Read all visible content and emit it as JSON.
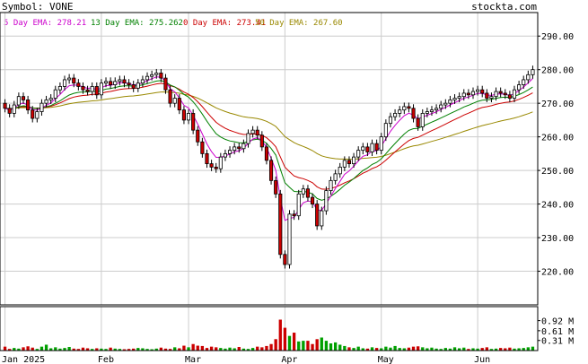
{
  "header": {
    "symbol_text": "Symbol: VONE",
    "site": "stockta.com"
  },
  "legend": [
    {
      "label": "5 Day EMA: 278.21",
      "color": "#cc00cc"
    },
    {
      "label": "13 Day EMA: 275.262",
      "color": "#008000"
    },
    {
      "label": "0 Day EMA: 273.41",
      "color": "#cc0000"
    },
    {
      "label": "50 Day EMA: 267.60",
      "color": "#998800"
    }
  ],
  "colors": {
    "up": "#ffffff",
    "down": "#cc0000",
    "vol_up": "#00a000",
    "vol_down": "#cc0000",
    "grid": "#cccccc",
    "panel_border": "#000000"
  },
  "chart_data": {
    "type": "candlestick",
    "price_axis": {
      "ticks": [
        220,
        230,
        240,
        250,
        260,
        270,
        280,
        290
      ],
      "tick_labels": [
        "220.00",
        "230.00",
        "240.00",
        "250.00",
        "260.00",
        "270.00",
        "280.00",
        "290.00"
      ],
      "range": [
        210,
        297
      ]
    },
    "volume_axis": {
      "ticks": [
        0.31,
        0.61,
        0.92
      ],
      "tick_labels": [
        "0.31 M",
        "0.61 M",
        "0.92 M"
      ],
      "range": [
        0,
        1.35
      ]
    },
    "x_axis": {
      "labels": [
        "Jan 2025",
        "Feb",
        "Mar",
        "Apr",
        "May",
        "Jun"
      ],
      "label_index": [
        0,
        21,
        40,
        61,
        82,
        103
      ]
    },
    "close": [
      268.5,
      267.0,
      269.5,
      272.0,
      271.0,
      268.0,
      265.5,
      267.5,
      270.0,
      271.0,
      271.5,
      274.0,
      275.0,
      277.0,
      277.5,
      276.0,
      275.0,
      274.0,
      273.5,
      275.0,
      272.5,
      276.0,
      276.5,
      275.5,
      276.5,
      277.0,
      276.0,
      275.5,
      274.5,
      276.0,
      277.0,
      278.0,
      278.5,
      279.0,
      277.5,
      274.0,
      270.0,
      271.5,
      268.0,
      265.0,
      267.0,
      262.0,
      258.5,
      255.0,
      252.0,
      251.0,
      250.5,
      254.0,
      255.0,
      256.0,
      257.0,
      256.5,
      258.0,
      261.0,
      262.0,
      260.5,
      257.0,
      253.0,
      247.0,
      243.0,
      225.0,
      222.0,
      237.0,
      236.5,
      243.0,
      244.5,
      242.0,
      240.0,
      233.5,
      238.0,
      244.0,
      247.0,
      249.0,
      251.0,
      253.0,
      252.0,
      254.0,
      256.0,
      257.0,
      255.5,
      258.0,
      256.0,
      260.0,
      264.0,
      266.0,
      267.0,
      268.0,
      269.0,
      268.5,
      265.5,
      263.0,
      267.0,
      267.5,
      268.0,
      268.5,
      269.5,
      270.0,
      271.0,
      271.5,
      272.0,
      273.0,
      272.5,
      273.5,
      274.0,
      273.0,
      271.5,
      272.0,
      273.5,
      273.0,
      272.5,
      271.5,
      274.0,
      275.5,
      277.0,
      278.5,
      280.0
    ],
    "open": [
      270.0,
      268.5,
      267.0,
      269.5,
      272.0,
      271.0,
      268.0,
      265.5,
      267.5,
      270.0,
      271.0,
      271.5,
      274.0,
      275.0,
      277.0,
      277.5,
      276.0,
      275.0,
      274.0,
      273.5,
      275.0,
      272.5,
      276.0,
      276.5,
      275.5,
      276.5,
      277.0,
      276.0,
      275.5,
      274.5,
      276.0,
      277.0,
      278.0,
      278.5,
      279.0,
      277.5,
      274.0,
      270.0,
      271.5,
      268.0,
      265.0,
      267.0,
      262.0,
      258.5,
      255.0,
      252.0,
      251.0,
      250.5,
      254.0,
      255.0,
      256.0,
      257.0,
      256.5,
      258.0,
      261.0,
      262.0,
      260.5,
      257.0,
      253.0,
      247.0,
      243.0,
      225.0,
      222.0,
      237.0,
      236.5,
      243.0,
      244.5,
      242.0,
      240.0,
      233.5,
      238.0,
      244.0,
      247.0,
      249.0,
      251.0,
      253.0,
      252.0,
      254.0,
      256.0,
      257.0,
      255.5,
      258.0,
      256.0,
      260.0,
      264.0,
      266.0,
      267.0,
      268.0,
      269.0,
      268.5,
      265.5,
      263.0,
      267.0,
      267.5,
      268.0,
      268.5,
      269.5,
      270.0,
      271.0,
      271.5,
      272.0,
      273.0,
      272.5,
      273.5,
      274.0,
      273.0,
      271.5,
      272.0,
      273.5,
      273.0,
      272.5,
      271.5,
      274.0,
      275.5,
      277.0,
      278.5
    ],
    "volume": [
      0.12,
      0.05,
      0.08,
      0.06,
      0.1,
      0.13,
      0.09,
      0.05,
      0.12,
      0.18,
      0.07,
      0.1,
      0.06,
      0.08,
      0.11,
      0.06,
      0.05,
      0.09,
      0.07,
      0.05,
      0.07,
      0.06,
      0.05,
      0.09,
      0.06,
      0.05,
      0.04,
      0.05,
      0.06,
      0.08,
      0.07,
      0.05,
      0.04,
      0.06,
      0.09,
      0.06,
      0.05,
      0.1,
      0.07,
      0.15,
      0.1,
      0.2,
      0.15,
      0.14,
      0.08,
      0.12,
      0.1,
      0.08,
      0.06,
      0.09,
      0.07,
      0.11,
      0.06,
      0.05,
      0.08,
      0.12,
      0.1,
      0.14,
      0.2,
      0.35,
      0.95,
      0.7,
      0.45,
      0.55,
      0.28,
      0.3,
      0.3,
      0.2,
      0.35,
      0.4,
      0.3,
      0.22,
      0.25,
      0.18,
      0.14,
      0.1,
      0.08,
      0.12,
      0.07,
      0.06,
      0.1,
      0.08,
      0.07,
      0.12,
      0.09,
      0.14,
      0.08,
      0.07,
      0.09,
      0.12,
      0.13,
      0.1,
      0.07,
      0.09,
      0.06,
      0.05,
      0.08,
      0.06,
      0.1,
      0.07,
      0.09,
      0.05,
      0.07,
      0.06,
      0.08,
      0.1,
      0.05,
      0.06,
      0.08,
      0.07,
      0.09,
      0.06,
      0.07,
      0.08,
      0.1,
      0.12
    ]
  }
}
